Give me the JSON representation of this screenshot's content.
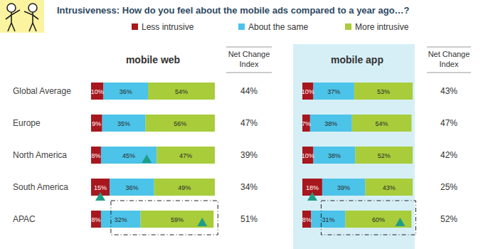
{
  "header": {
    "title": "Intrusiveness:  How do you feel about the mobile ads compared to a year ago…?"
  },
  "chart_data": [
    {
      "type": "bar",
      "title": "mobile web",
      "orientation": "horizontal",
      "stacked": true,
      "data_labels": true,
      "tick_labels": false,
      "legend": "top",
      "xlim": [
        0,
        100
      ],
      "categories": [
        "Global Average",
        "Europe",
        "North America",
        "South America",
        "APAC"
      ],
      "series": [
        {
          "name": "Less intrusive",
          "color": "#a8171e",
          "values": [
            10,
            9,
            8,
            15,
            8
          ],
          "value_labels": [
            "10%",
            "9%",
            "8%",
            "15%",
            "8%"
          ]
        },
        {
          "name": "About the same",
          "color": "#4cc3e8",
          "values": [
            36,
            35,
            45,
            36,
            32
          ],
          "value_labels": [
            "36%",
            "35%",
            "45%",
            "36%",
            "32%"
          ]
        },
        {
          "name": "More intrusive",
          "color": "#a8cc3a",
          "values": [
            54,
            56,
            47,
            49,
            59
          ],
          "value_labels": [
            "54%",
            "56%",
            "47%",
            "49%",
            "59%"
          ]
        }
      ],
      "net_change": {
        "label": "Net Change Index",
        "values": [
          44,
          47,
          39,
          34,
          51
        ],
        "value_labels": [
          "44%",
          "47%",
          "39%",
          "34%",
          "51%"
        ]
      }
    },
    {
      "type": "bar",
      "title": "mobile app",
      "orientation": "horizontal",
      "stacked": true,
      "data_labels": true,
      "tick_labels": false,
      "xlim": [
        0,
        100
      ],
      "series": [
        {
          "name": "Less intrusive",
          "color": "#a8171e",
          "values": [
            10,
            7,
            10,
            18,
            8
          ],
          "value_labels": [
            "10%",
            "7%",
            "10%",
            "18%",
            "8%"
          ]
        },
        {
          "name": "About the same",
          "color": "#4cc3e8",
          "values": [
            37,
            38,
            38,
            39,
            31
          ],
          "value_labels": [
            "37%",
            "38%",
            "38%",
            "39%",
            "31%"
          ]
        },
        {
          "name": "More intrusive",
          "color": "#a8cc3a",
          "values": [
            53,
            54,
            52,
            43,
            60
          ],
          "value_labels": [
            "53%",
            "54%",
            "52%",
            "43%",
            "60%"
          ]
        }
      ],
      "net_change": {
        "label": "Net Change Index",
        "values": [
          43,
          47,
          42,
          25,
          52
        ],
        "value_labels": [
          "43%",
          "47%",
          "42%",
          "25%",
          "52%"
        ]
      }
    }
  ]
}
